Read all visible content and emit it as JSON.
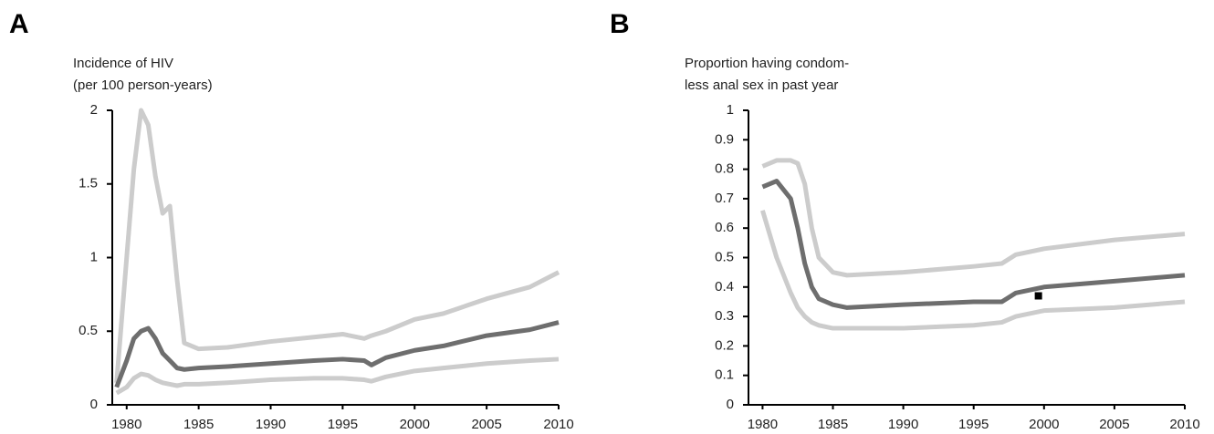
{
  "chart_data": [
    {
      "type": "line",
      "label": "A",
      "ylabel": [
        "Incidence of HIV",
        "(per 100 person-years)"
      ],
      "x": [
        1979.3,
        1980,
        1980.5,
        1981,
        1981.5,
        1982,
        1982.5,
        1983,
        1983.5,
        1984,
        1985,
        1987,
        1990,
        1993,
        1995,
        1996.5,
        1997,
        1998,
        2000,
        2002,
        2005,
        2008,
        2010
      ],
      "series": [
        {
          "color": "#cccccc",
          "values": [
            0.15,
            1.0,
            1.6,
            2.0,
            1.9,
            1.55,
            1.3,
            1.35,
            0.85,
            0.42,
            0.38,
            0.39,
            0.43,
            0.46,
            0.48,
            0.45,
            0.47,
            0.5,
            0.58,
            0.62,
            0.72,
            0.8,
            0.9
          ]
        },
        {
          "color": "#6e6e6e",
          "values": [
            0.12,
            0.3,
            0.45,
            0.5,
            0.52,
            0.45,
            0.35,
            0.3,
            0.25,
            0.24,
            0.25,
            0.26,
            0.28,
            0.3,
            0.31,
            0.3,
            0.27,
            0.32,
            0.37,
            0.4,
            0.47,
            0.51,
            0.56
          ]
        },
        {
          "color": "#cccccc",
          "values": [
            0.08,
            0.12,
            0.18,
            0.21,
            0.2,
            0.17,
            0.15,
            0.14,
            0.13,
            0.14,
            0.14,
            0.15,
            0.17,
            0.18,
            0.18,
            0.17,
            0.16,
            0.19,
            0.23,
            0.25,
            0.28,
            0.3,
            0.31
          ]
        }
      ],
      "xlim": [
        1979,
        2010
      ],
      "xticks": [
        1980,
        1985,
        1990,
        1995,
        2000,
        2005,
        2010
      ],
      "ylim": [
        0,
        2
      ],
      "yticks": [
        0,
        0.5,
        1,
        1.5,
        2
      ],
      "grid": false
    },
    {
      "type": "line",
      "label": "B",
      "ylabel": [
        "Proportion having condom-",
        "less anal sex in past year"
      ],
      "x": [
        1980,
        1981,
        1982,
        1982.5,
        1983,
        1983.5,
        1984,
        1985,
        1986,
        1990,
        1995,
        1997,
        1998,
        2000,
        2005,
        2010
      ],
      "series": [
        {
          "color": "#cccccc",
          "values": [
            0.81,
            0.83,
            0.83,
            0.82,
            0.75,
            0.6,
            0.5,
            0.45,
            0.44,
            0.45,
            0.47,
            0.48,
            0.51,
            0.53,
            0.56,
            0.58
          ]
        },
        {
          "color": "#6e6e6e",
          "values": [
            0.74,
            0.76,
            0.7,
            0.6,
            0.48,
            0.4,
            0.36,
            0.34,
            0.33,
            0.34,
            0.35,
            0.35,
            0.38,
            0.4,
            0.42,
            0.44
          ]
        },
        {
          "color": "#cccccc",
          "values": [
            0.66,
            0.5,
            0.38,
            0.33,
            0.3,
            0.28,
            0.27,
            0.26,
            0.26,
            0.26,
            0.27,
            0.28,
            0.3,
            0.32,
            0.33,
            0.35
          ]
        }
      ],
      "points": {
        "color": "#000000",
        "x": [
          1999.6
        ],
        "y": [
          0.37
        ]
      },
      "xlim": [
        1979,
        2010
      ],
      "xticks": [
        1980,
        1985,
        1990,
        1995,
        2000,
        2005,
        2010
      ],
      "ylim": [
        0,
        1
      ],
      "yticks": [
        0,
        0.1,
        0.2,
        0.3,
        0.4,
        0.5,
        0.6,
        0.7,
        0.8,
        0.9,
        1
      ],
      "grid": false
    }
  ]
}
